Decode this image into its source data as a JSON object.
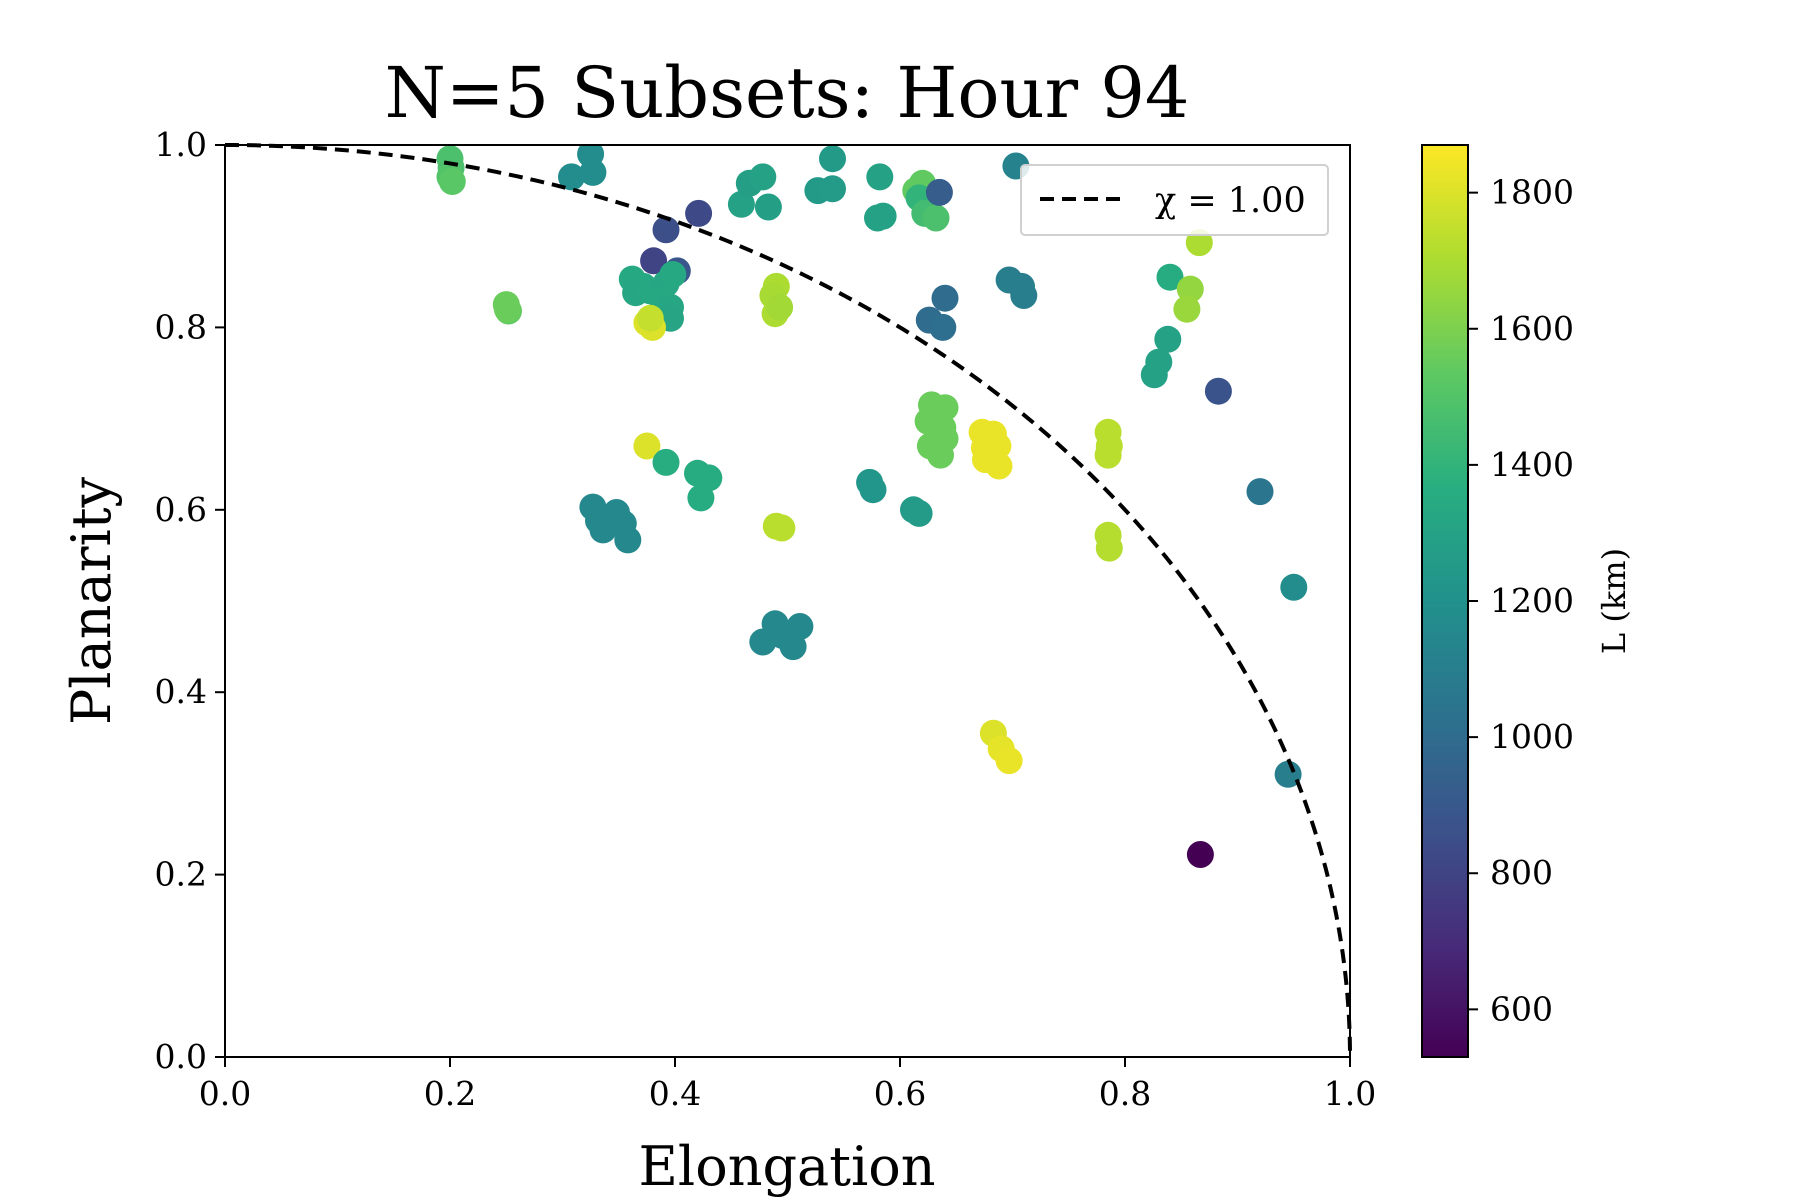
{
  "chart_data": {
    "type": "scatter",
    "title": "N=5 Subsets: Hour 94",
    "xlabel": "Elongation",
    "ylabel": "Planarity",
    "xlim": [
      0.0,
      1.0
    ],
    "ylim": [
      0.0,
      1.0
    ],
    "xticks": [
      "0.0",
      "0.2",
      "0.4",
      "0.6",
      "0.8",
      "1.0"
    ],
    "yticks": [
      "0.0",
      "0.2",
      "0.4",
      "0.6",
      "0.8",
      "1.0"
    ],
    "grid": false,
    "legend": {
      "placement": "top-right",
      "entries": [
        {
          "label": "χ = 1.00",
          "style": "dashed",
          "color": "#000000"
        }
      ]
    },
    "reference_curve": {
      "name": "χ = 1.00",
      "equation": "x^2 + y^2 = 1"
    },
    "colorbar": {
      "label": "L (km)",
      "colormap": "viridis",
      "range": [
        530,
        1870
      ],
      "ticks": [
        "600",
        "800",
        "1000",
        "1200",
        "1400",
        "1600",
        "1800"
      ],
      "tick_values": [
        600,
        800,
        1000,
        1200,
        1400,
        1600,
        1800
      ]
    },
    "points": [
      {
        "x": 0.2,
        "y": 0.985,
        "c": 1480
      },
      {
        "x": 0.201,
        "y": 0.975,
        "c": 1480
      },
      {
        "x": 0.2,
        "y": 0.965,
        "c": 1500
      },
      {
        "x": 0.202,
        "y": 0.96,
        "c": 1520
      },
      {
        "x": 0.25,
        "y": 0.825,
        "c": 1560
      },
      {
        "x": 0.252,
        "y": 0.818,
        "c": 1540
      },
      {
        "x": 0.251,
        "y": 0.82,
        "c": 1560
      },
      {
        "x": 0.308,
        "y": 0.965,
        "c": 1180
      },
      {
        "x": 0.325,
        "y": 0.99,
        "c": 1180
      },
      {
        "x": 0.327,
        "y": 0.97,
        "c": 1180
      },
      {
        "x": 0.392,
        "y": 0.907,
        "c": 850
      },
      {
        "x": 0.421,
        "y": 0.925,
        "c": 830
      },
      {
        "x": 0.381,
        "y": 0.873,
        "c": 800
      },
      {
        "x": 0.402,
        "y": 0.862,
        "c": 880
      },
      {
        "x": 0.362,
        "y": 0.853,
        "c": 1330
      },
      {
        "x": 0.372,
        "y": 0.845,
        "c": 1330
      },
      {
        "x": 0.365,
        "y": 0.838,
        "c": 1320
      },
      {
        "x": 0.378,
        "y": 0.84,
        "c": 1330
      },
      {
        "x": 0.392,
        "y": 0.848,
        "c": 1320
      },
      {
        "x": 0.398,
        "y": 0.858,
        "c": 1330
      },
      {
        "x": 0.388,
        "y": 0.832,
        "c": 1330
      },
      {
        "x": 0.396,
        "y": 0.822,
        "c": 1320
      },
      {
        "x": 0.388,
        "y": 0.812,
        "c": 1320
      },
      {
        "x": 0.396,
        "y": 0.81,
        "c": 1310
      },
      {
        "x": 0.375,
        "y": 0.805,
        "c": 1800
      },
      {
        "x": 0.38,
        "y": 0.8,
        "c": 1800
      },
      {
        "x": 0.378,
        "y": 0.81,
        "c": 1750
      },
      {
        "x": 0.459,
        "y": 0.935,
        "c": 1290
      },
      {
        "x": 0.466,
        "y": 0.958,
        "c": 1280
      },
      {
        "x": 0.478,
        "y": 0.965,
        "c": 1290
      },
      {
        "x": 0.483,
        "y": 0.932,
        "c": 1280
      },
      {
        "x": 0.527,
        "y": 0.95,
        "c": 1250
      },
      {
        "x": 0.54,
        "y": 0.985,
        "c": 1250
      },
      {
        "x": 0.54,
        "y": 0.952,
        "c": 1260
      },
      {
        "x": 0.582,
        "y": 0.965,
        "c": 1300
      },
      {
        "x": 0.585,
        "y": 0.922,
        "c": 1300
      },
      {
        "x": 0.58,
        "y": 0.92,
        "c": 1300
      },
      {
        "x": 0.614,
        "y": 0.95,
        "c": 1540
      },
      {
        "x": 0.62,
        "y": 0.958,
        "c": 1540
      },
      {
        "x": 0.617,
        "y": 0.942,
        "c": 1400
      },
      {
        "x": 0.622,
        "y": 0.925,
        "c": 1450
      },
      {
        "x": 0.632,
        "y": 0.92,
        "c": 1480
      },
      {
        "x": 0.635,
        "y": 0.948,
        "c": 920
      },
      {
        "x": 0.703,
        "y": 0.977,
        "c": 1120
      },
      {
        "x": 0.49,
        "y": 0.845,
        "c": 1700
      },
      {
        "x": 0.487,
        "y": 0.835,
        "c": 1690
      },
      {
        "x": 0.489,
        "y": 0.815,
        "c": 1700
      },
      {
        "x": 0.493,
        "y": 0.822,
        "c": 1680
      },
      {
        "x": 0.64,
        "y": 0.832,
        "c": 1000
      },
      {
        "x": 0.626,
        "y": 0.808,
        "c": 1000
      },
      {
        "x": 0.638,
        "y": 0.8,
        "c": 1010
      },
      {
        "x": 0.697,
        "y": 0.852,
        "c": 1100
      },
      {
        "x": 0.708,
        "y": 0.845,
        "c": 1100
      },
      {
        "x": 0.71,
        "y": 0.835,
        "c": 1100
      },
      {
        "x": 0.866,
        "y": 0.893,
        "c": 1700
      },
      {
        "x": 0.84,
        "y": 0.855,
        "c": 1350
      },
      {
        "x": 0.858,
        "y": 0.842,
        "c": 1650
      },
      {
        "x": 0.855,
        "y": 0.82,
        "c": 1660
      },
      {
        "x": 0.838,
        "y": 0.787,
        "c": 1300
      },
      {
        "x": 0.83,
        "y": 0.762,
        "c": 1300
      },
      {
        "x": 0.826,
        "y": 0.748,
        "c": 1300
      },
      {
        "x": 0.883,
        "y": 0.73,
        "c": 870
      },
      {
        "x": 0.628,
        "y": 0.715,
        "c": 1560
      },
      {
        "x": 0.64,
        "y": 0.712,
        "c": 1560
      },
      {
        "x": 0.625,
        "y": 0.697,
        "c": 1560
      },
      {
        "x": 0.638,
        "y": 0.69,
        "c": 1560
      },
      {
        "x": 0.627,
        "y": 0.67,
        "c": 1560
      },
      {
        "x": 0.64,
        "y": 0.678,
        "c": 1560
      },
      {
        "x": 0.636,
        "y": 0.66,
        "c": 1560
      },
      {
        "x": 0.673,
        "y": 0.685,
        "c": 1830
      },
      {
        "x": 0.683,
        "y": 0.683,
        "c": 1830
      },
      {
        "x": 0.675,
        "y": 0.668,
        "c": 1830
      },
      {
        "x": 0.687,
        "y": 0.67,
        "c": 1830
      },
      {
        "x": 0.676,
        "y": 0.655,
        "c": 1830
      },
      {
        "x": 0.688,
        "y": 0.648,
        "c": 1830
      },
      {
        "x": 0.785,
        "y": 0.685,
        "c": 1730
      },
      {
        "x": 0.786,
        "y": 0.67,
        "c": 1730
      },
      {
        "x": 0.785,
        "y": 0.66,
        "c": 1730
      },
      {
        "x": 0.375,
        "y": 0.67,
        "c": 1800
      },
      {
        "x": 0.392,
        "y": 0.652,
        "c": 1360
      },
      {
        "x": 0.42,
        "y": 0.64,
        "c": 1350
      },
      {
        "x": 0.43,
        "y": 0.635,
        "c": 1350
      },
      {
        "x": 0.423,
        "y": 0.613,
        "c": 1350
      },
      {
        "x": 0.573,
        "y": 0.63,
        "c": 1230
      },
      {
        "x": 0.576,
        "y": 0.622,
        "c": 1230
      },
      {
        "x": 0.612,
        "y": 0.6,
        "c": 1260
      },
      {
        "x": 0.617,
        "y": 0.596,
        "c": 1260
      },
      {
        "x": 0.327,
        "y": 0.603,
        "c": 1150
      },
      {
        "x": 0.332,
        "y": 0.588,
        "c": 1150
      },
      {
        "x": 0.336,
        "y": 0.578,
        "c": 1150
      },
      {
        "x": 0.348,
        "y": 0.597,
        "c": 1150
      },
      {
        "x": 0.354,
        "y": 0.585,
        "c": 1150
      },
      {
        "x": 0.358,
        "y": 0.567,
        "c": 1150
      },
      {
        "x": 0.49,
        "y": 0.582,
        "c": 1730
      },
      {
        "x": 0.495,
        "y": 0.58,
        "c": 1730
      },
      {
        "x": 0.785,
        "y": 0.572,
        "c": 1720
      },
      {
        "x": 0.786,
        "y": 0.558,
        "c": 1720
      },
      {
        "x": 0.92,
        "y": 0.62,
        "c": 1050
      },
      {
        "x": 0.95,
        "y": 0.515,
        "c": 1180
      },
      {
        "x": 0.478,
        "y": 0.455,
        "c": 1150
      },
      {
        "x": 0.489,
        "y": 0.475,
        "c": 1150
      },
      {
        "x": 0.496,
        "y": 0.462,
        "c": 1150
      },
      {
        "x": 0.505,
        "y": 0.45,
        "c": 1150
      },
      {
        "x": 0.511,
        "y": 0.472,
        "c": 1150
      },
      {
        "x": 0.683,
        "y": 0.355,
        "c": 1800
      },
      {
        "x": 0.69,
        "y": 0.338,
        "c": 1820
      },
      {
        "x": 0.697,
        "y": 0.325,
        "c": 1830
      },
      {
        "x": 0.945,
        "y": 0.31,
        "c": 1100
      },
      {
        "x": 0.867,
        "y": 0.222,
        "c": 530
      }
    ]
  }
}
